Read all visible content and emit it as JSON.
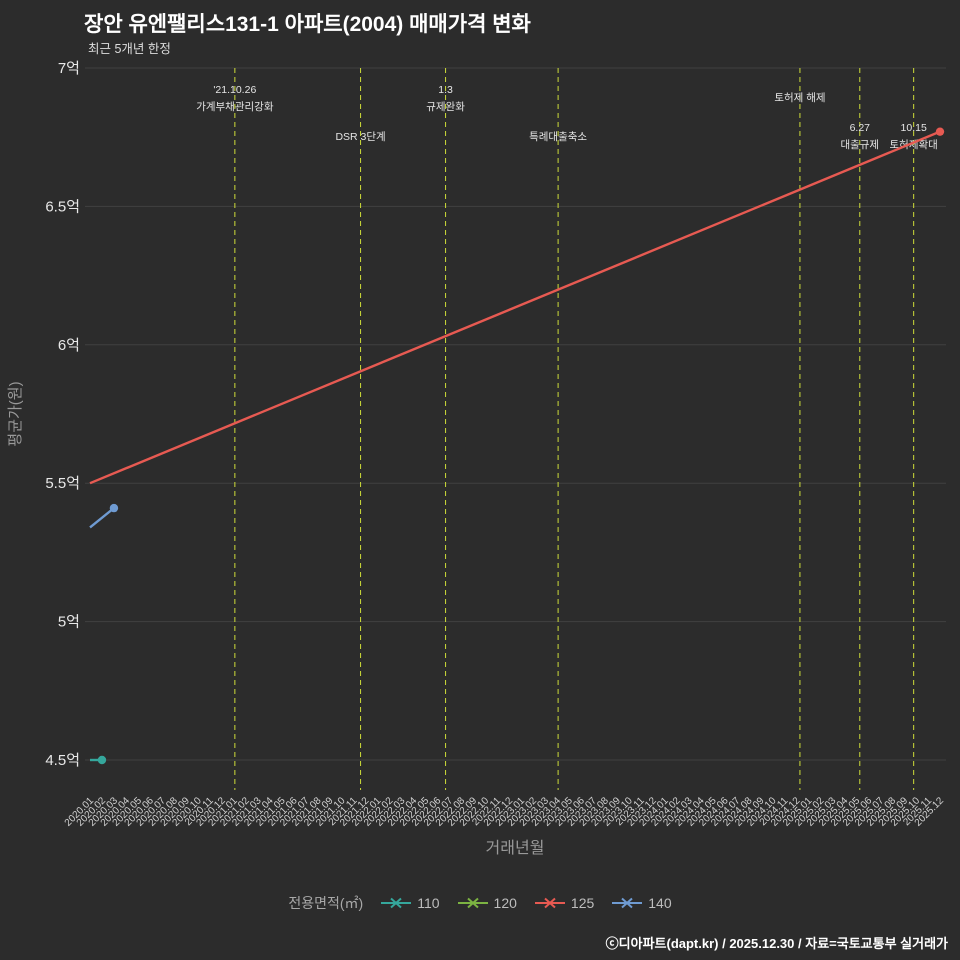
{
  "title": "장안 유엔팰리스131-1 아파트(2004) 매매가격 변화",
  "subtitle": "최근 5개년 한정",
  "footer": "ⓒ디아파트(dapt.kr) / 2025.12.30 / 자료=국토교통부 실거래가",
  "chart_data": {
    "type": "line",
    "title": "장안 유엔팰리스131-1 아파트(2004) 매매가격 변화",
    "xlabel": "거래년월",
    "ylabel": "평균가(원)",
    "legend_title": "전용면적(㎡)",
    "legend_position": "bottom",
    "grid": true,
    "ylim": [
      4.5,
      7
    ],
    "event_line_color": "#cddc39",
    "y_ticks": [
      {
        "v": 4.5,
        "label": "4.5억"
      },
      {
        "v": 5,
        "label": "5억"
      },
      {
        "v": 5.5,
        "label": "5.5억"
      },
      {
        "v": 6,
        "label": "6억"
      },
      {
        "v": 6.5,
        "label": "6.5억"
      },
      {
        "v": 7,
        "label": "7억"
      }
    ],
    "categories": [
      "2020.01",
      "2020.02",
      "2020.03",
      "2020.04",
      "2020.05",
      "2020.06",
      "2020.07",
      "2020.08",
      "2020.09",
      "2020.10",
      "2020.11",
      "2020.12",
      "2021.01",
      "2021.02",
      "2021.03",
      "2021.04",
      "2021.05",
      "2021.06",
      "2021.07",
      "2021.08",
      "2021.09",
      "2021.10",
      "2021.11",
      "2021.12",
      "2022.01",
      "2022.02",
      "2022.03",
      "2022.04",
      "2022.05",
      "2022.06",
      "2022.07",
      "2022.08",
      "2022.09",
      "2022.10",
      "2022.11",
      "2022.12",
      "2023.01",
      "2023.02",
      "2023.03",
      "2023.04",
      "2023.05",
      "2023.06",
      "2023.07",
      "2023.08",
      "2023.09",
      "2023.10",
      "2023.11",
      "2023.12",
      "2024.01",
      "2024.02",
      "2024.03",
      "2024.04",
      "2024.05",
      "2024.06",
      "2024.07",
      "2024.08",
      "2024.09",
      "2024.10",
      "2024.11",
      "2024.12",
      "2025.01",
      "2025.02",
      "2025.03",
      "2025.04",
      "2025.05",
      "2025.06",
      "2025.07",
      "2025.08",
      "2025.09",
      "2025.10",
      "2025.11",
      "2025.12"
    ],
    "series": [
      {
        "name": "110",
        "color": "#35a79c",
        "points": [
          [
            "2020.01",
            4.5
          ],
          [
            "2020.02",
            4.5
          ]
        ]
      },
      {
        "name": "120",
        "color": "#7cb342",
        "points": []
      },
      {
        "name": "125",
        "color": "#e75a52",
        "points": [
          [
            "2020.01",
            5.5
          ],
          [
            "2025.12",
            6.77
          ]
        ]
      },
      {
        "name": "140",
        "color": "#6f9bd2",
        "points": [
          [
            "2020.01",
            5.34
          ],
          [
            "2020.03",
            5.41
          ]
        ]
      }
    ],
    "events": [
      {
        "at": 12.1,
        "label_y": 93,
        "lines": [
          "'21.10.26",
          "가계부채관리강화"
        ]
      },
      {
        "at": 22.6,
        "label_y": 140,
        "lines": [
          "DSR 3단계"
        ]
      },
      {
        "at": 29.7,
        "label_y": 93,
        "lines": [
          "1.3",
          "규제완화"
        ]
      },
      {
        "at": 39.1,
        "label_y": 140,
        "lines": [
          "특례대출축소"
        ]
      },
      {
        "at": 59.3,
        "label_y": 101,
        "lines": [
          "토허제 해제"
        ]
      },
      {
        "at": 64.3,
        "label_y": 131,
        "lines": [
          "6.27",
          "대출규제"
        ]
      },
      {
        "at": 68.8,
        "label_y": 131,
        "lines": [
          "10.15",
          "토허제확대"
        ]
      }
    ]
  }
}
